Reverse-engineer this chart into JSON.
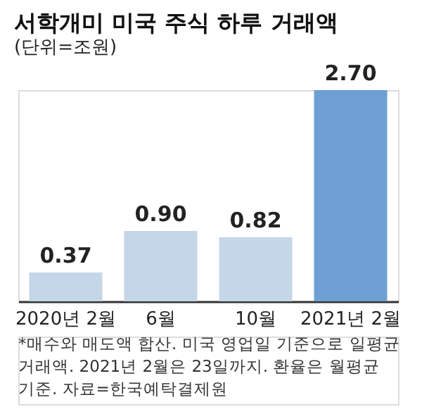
{
  "chart_data": {
    "type": "bar",
    "title": "서학개미 미국 주식 하루 거래액",
    "subtitle": "(단위=조원)",
    "categories": [
      "2020년 2월",
      "6월",
      "10월",
      "2021년 2월"
    ],
    "values": [
      0.37,
      0.9,
      0.82,
      2.7
    ],
    "colors": [
      "#c5d6e8",
      "#c5d6e8",
      "#c5d6e8",
      "#6e9fd2"
    ],
    "value_labels": [
      "0.37",
      "0.90",
      "0.82",
      "2.70"
    ],
    "annotations": [
      "*매수와 매도액 합산. 미국 영업일 기준으로 일평균 거래액. 2021년 2월은 23일까지. 환율은 월평균 기준. 자료=한국예탁결제원"
    ]
  }
}
